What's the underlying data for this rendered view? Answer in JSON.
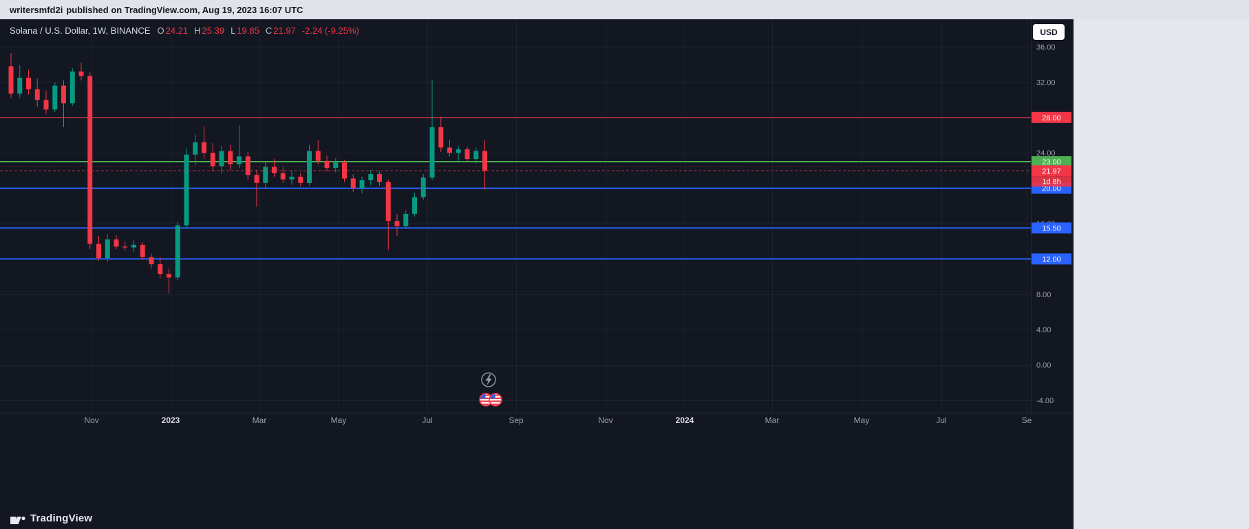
{
  "topbar": {
    "username": "writersmfd2i",
    "info": "published on TradingView.com, Aug 19, 2023 16:07 UTC"
  },
  "header": {
    "symbol_title": "Solana / U.S. Dollar, 1W, BINANCE",
    "ohlc": {
      "o_label": "O",
      "o": "24.21",
      "h_label": "H",
      "h": "25.39",
      "l_label": "L",
      "l": "19.85",
      "c_label": "C",
      "c": "21.97",
      "change": "-2.24 (-9.25%)"
    }
  },
  "currency_button": {
    "label": "USD"
  },
  "footer": {
    "logo_text": "TradingView"
  },
  "chart_data": {
    "type": "candlestick",
    "symbol": "Solana / U.S. Dollar",
    "interval": "1W",
    "exchange": "BINANCE",
    "colors": {
      "up": "#089981",
      "down": "#f23645",
      "background": "#131722"
    },
    "y_axis": {
      "side": "right",
      "format": "0.00",
      "ticks": [
        36,
        32,
        28,
        24,
        20,
        16,
        12,
        8,
        4,
        0,
        -4
      ]
    },
    "x_axis": {
      "labels": [
        {
          "label": "Nov"
        },
        {
          "label": "2023",
          "year": true
        },
        {
          "label": "Mar"
        },
        {
          "label": "May"
        },
        {
          "label": "Jul"
        },
        {
          "label": "Sep"
        },
        {
          "label": "Nov"
        },
        {
          "label": "2024",
          "year": true
        },
        {
          "label": "Mar"
        },
        {
          "label": "May"
        },
        {
          "label": "Jul"
        },
        {
          "label": "Se"
        }
      ]
    },
    "levels": [
      {
        "price": 28.0,
        "label": "28.00",
        "color": "#f23645",
        "style": "solid",
        "width": 1
      },
      {
        "price": 23.0,
        "label": "23.00",
        "color": "#4caf50",
        "style": "solid",
        "width": 2
      },
      {
        "price": 22.45,
        "label": null,
        "color": "#8b2a35",
        "style": "dotted",
        "width": 1
      },
      {
        "price": 20.0,
        "label": "20.00",
        "color": "#2962ff",
        "style": "solid",
        "width": 2
      },
      {
        "price": 15.5,
        "label": "15.50",
        "color": "#2962ff",
        "style": "solid",
        "width": 2
      },
      {
        "price": 12.0,
        "label": "12.00",
        "color": "#2962ff",
        "style": "solid",
        "width": 2
      }
    ],
    "last_price": {
      "value": 21.97,
      "label": "21.97",
      "countdown": "1d 8h",
      "color": "#f23645"
    },
    "candle_format": [
      "open",
      "high",
      "low",
      "close"
    ],
    "candles": [
      [
        33.8,
        35.3,
        30.2,
        30.7
      ],
      [
        30.7,
        33.9,
        30.2,
        32.5
      ],
      [
        32.5,
        33.4,
        30.6,
        31.2
      ],
      [
        31.2,
        32.4,
        29.2,
        30.0
      ],
      [
        30.0,
        31.0,
        28.4,
        28.9
      ],
      [
        28.9,
        32.0,
        28.6,
        31.6
      ],
      [
        31.6,
        32.2,
        26.9,
        29.6
      ],
      [
        29.6,
        33.6,
        29.3,
        33.2
      ],
      [
        33.2,
        34.2,
        32.2,
        32.7
      ],
      [
        32.7,
        33.1,
        13.1,
        13.7
      ],
      [
        13.7,
        14.6,
        11.8,
        12.1
      ],
      [
        12.1,
        14.8,
        11.7,
        14.2
      ],
      [
        14.2,
        14.7,
        13.1,
        13.4
      ],
      [
        13.4,
        14.0,
        12.9,
        13.3
      ],
      [
        13.3,
        14.1,
        12.8,
        13.6
      ],
      [
        13.6,
        13.9,
        11.9,
        12.2
      ],
      [
        12.2,
        12.6,
        10.9,
        11.4
      ],
      [
        11.4,
        12.2,
        9.8,
        10.3
      ],
      [
        10.3,
        10.9,
        8.1,
        9.9
      ],
      [
        9.9,
        16.2,
        9.6,
        15.8
      ],
      [
        15.8,
        24.5,
        15.5,
        23.8
      ],
      [
        23.8,
        26.1,
        22.6,
        25.2
      ],
      [
        25.2,
        27.0,
        23.3,
        24.0
      ],
      [
        24.0,
        25.1,
        21.9,
        22.5
      ],
      [
        22.5,
        24.8,
        21.7,
        24.2
      ],
      [
        24.2,
        24.9,
        22.0,
        22.7
      ],
      [
        22.7,
        27.1,
        22.3,
        23.6
      ],
      [
        23.6,
        24.1,
        20.9,
        21.5
      ],
      [
        21.5,
        22.1,
        17.9,
        20.6
      ],
      [
        20.6,
        23.0,
        19.9,
        22.4
      ],
      [
        22.4,
        23.3,
        21.3,
        21.7
      ],
      [
        21.7,
        22.4,
        20.6,
        21.0
      ],
      [
        21.0,
        22.0,
        20.4,
        21.3
      ],
      [
        21.3,
        21.7,
        20.2,
        20.6
      ],
      [
        20.6,
        24.9,
        20.3,
        24.2
      ],
      [
        24.2,
        25.4,
        22.7,
        23.1
      ],
      [
        23.1,
        23.7,
        21.9,
        22.3
      ],
      [
        22.3,
        23.4,
        21.8,
        22.9
      ],
      [
        22.9,
        23.2,
        20.7,
        21.1
      ],
      [
        21.1,
        21.6,
        19.6,
        20.0
      ],
      [
        20.0,
        21.3,
        19.4,
        20.9
      ],
      [
        20.9,
        22.1,
        20.3,
        21.6
      ],
      [
        21.6,
        21.9,
        20.3,
        20.7
      ],
      [
        20.7,
        21.0,
        13.0,
        16.3
      ],
      [
        16.3,
        17.1,
        14.6,
        15.7
      ],
      [
        15.7,
        17.5,
        15.4,
        17.1
      ],
      [
        17.1,
        19.5,
        16.8,
        19.0
      ],
      [
        19.0,
        21.6,
        18.7,
        21.2
      ],
      [
        21.2,
        32.3,
        20.9,
        26.9
      ],
      [
        26.9,
        28.1,
        24.1,
        24.6
      ],
      [
        24.6,
        25.5,
        23.6,
        24.0
      ],
      [
        24.0,
        24.8,
        22.9,
        24.4
      ],
      [
        24.4,
        24.7,
        23.0,
        23.3
      ],
      [
        23.3,
        24.6,
        22.8,
        24.21
      ],
      [
        24.21,
        25.39,
        19.85,
        21.97
      ]
    ],
    "event_markers": [
      {
        "type": "lightning",
        "name": "lightning-event-icon"
      },
      {
        "type": "us-flags",
        "name": "us-economic-event-icon"
      }
    ]
  }
}
